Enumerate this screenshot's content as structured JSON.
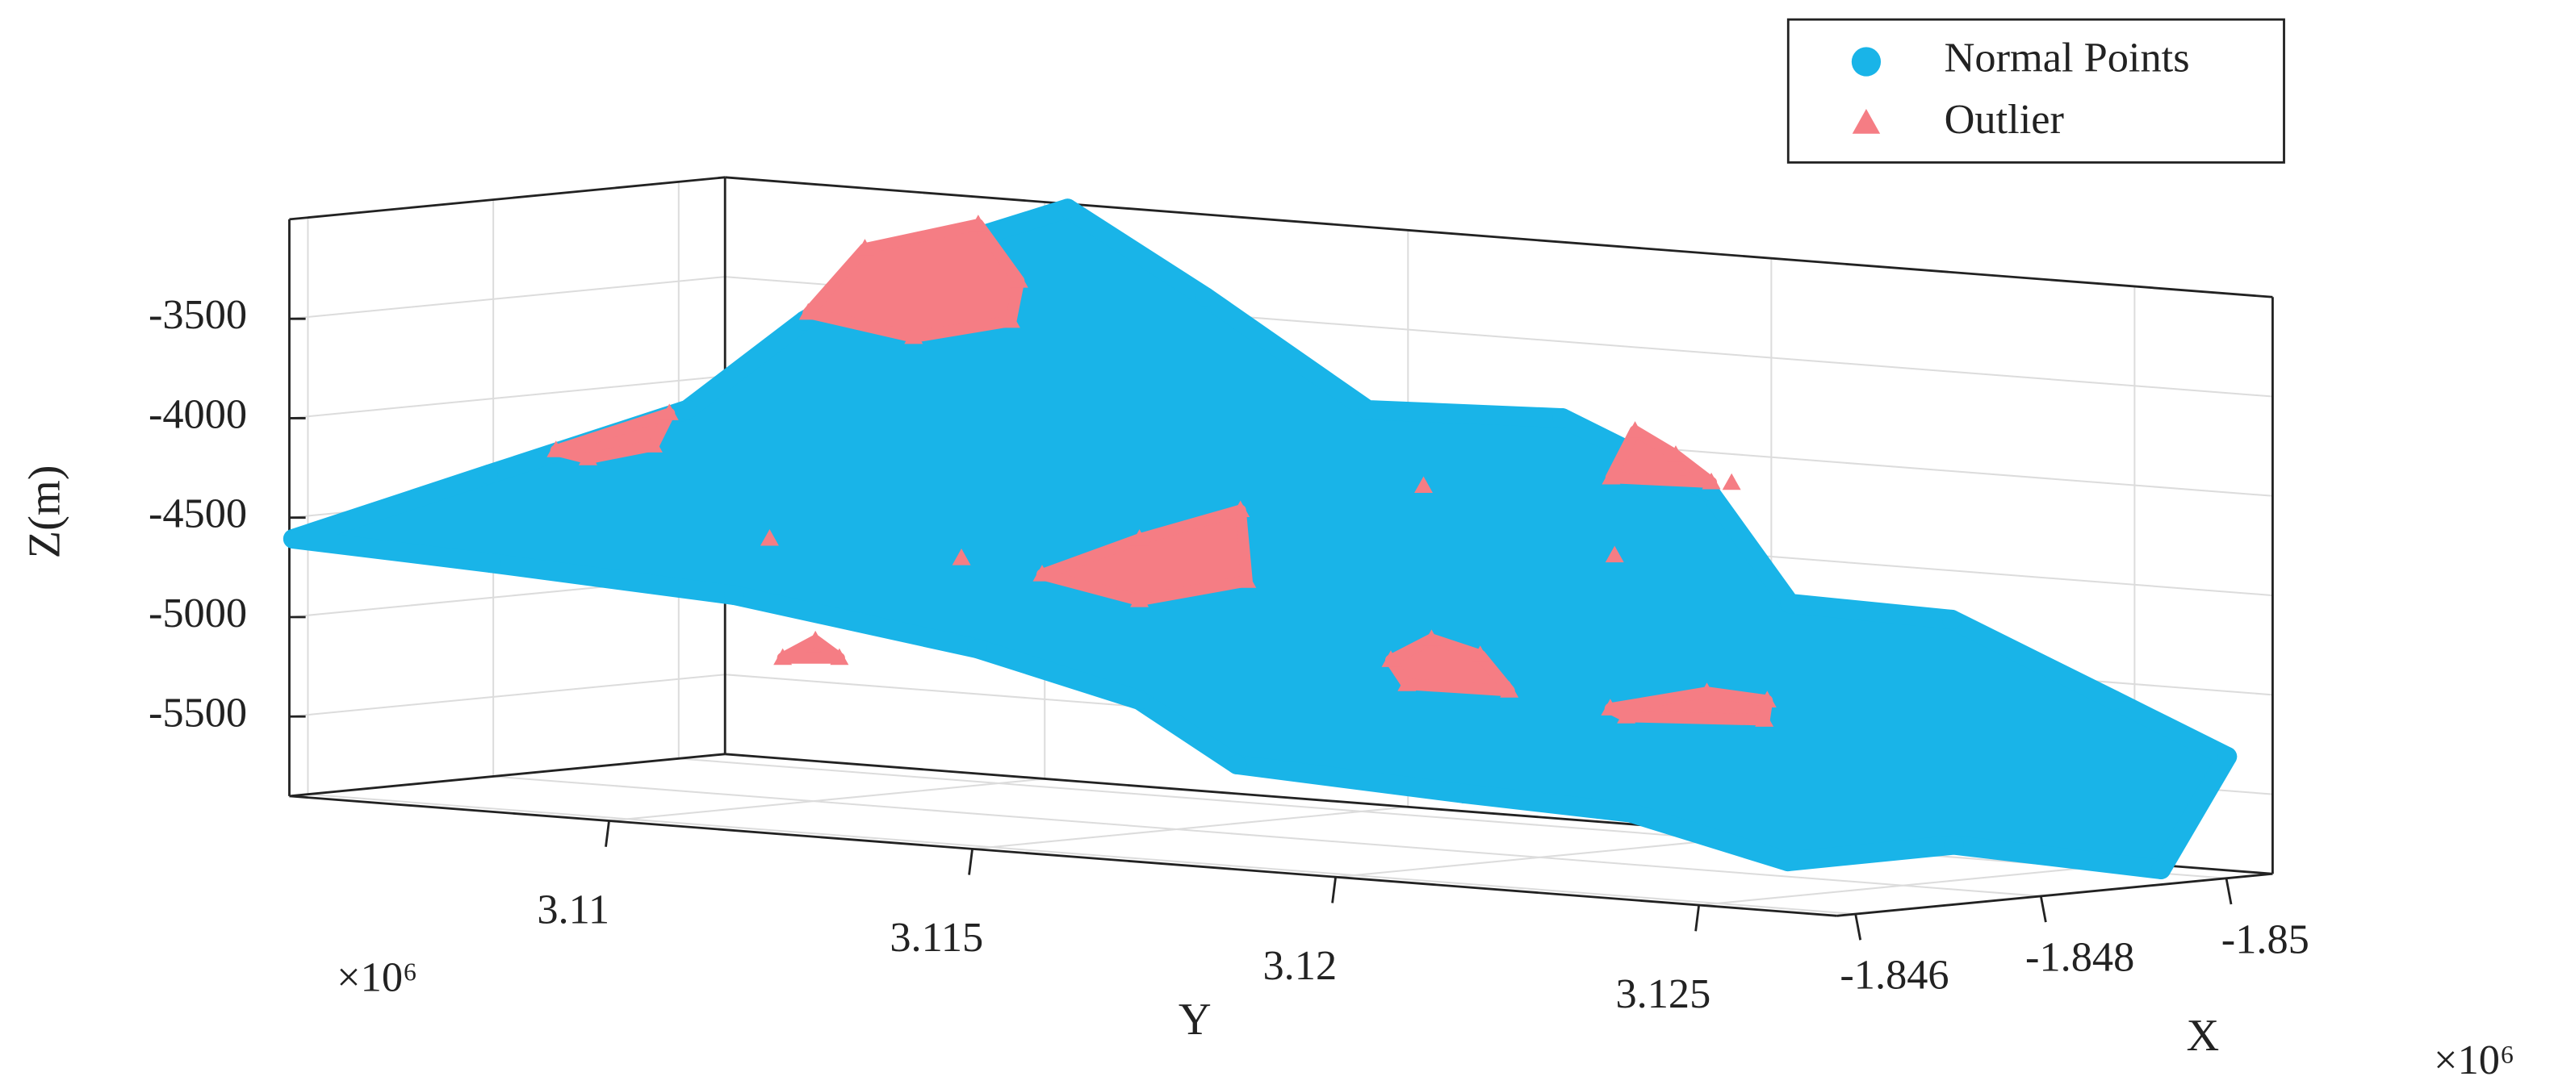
{
  "chart_data": {
    "type": "scatter3d",
    "zlabel": "Z(m)",
    "ylabel": "Y",
    "xlabel": "X",
    "y_exponent_label": "×10⁶",
    "x_exponent_label": "×10⁶",
    "ylim": [
      3.1056,
      3.1269
    ],
    "yticks": [
      3.11,
      3.115,
      3.12,
      3.125
    ],
    "xlim": [
      -1.8505,
      -1.8458
    ],
    "xticks": [
      -1.846,
      -1.848,
      -1.85
    ],
    "zlim": [
      -5900,
      -3000
    ],
    "zticks": [
      -5500,
      -5000,
      -4500,
      -4000,
      -3500
    ],
    "grid": true,
    "legend": "upper right",
    "series": [
      {
        "name": "Normal Points",
        "color": "#19b4e8",
        "marker": "circle",
        "y": [
          3.10565,
          3.10617,
          3.10674,
          3.10707,
          3.10845,
          3.11057,
          3.11247,
          3.1147,
          3.11738,
          3.11939,
          3.12051,
          3.12274,
          3.12497,
          3.12653,
          3.12613,
          3.12481,
          3.1238,
          3.12278,
          3.12177,
          3.11864,
          3.1173,
          3.11507,
          3.11172,
          3.10837
        ],
        "x": [
          -1.8458,
          -1.8475,
          -1.8492,
          -1.8502,
          -1.8503,
          -1.8503,
          -1.8503,
          -1.8503,
          -1.8503,
          -1.8503,
          -1.8503,
          -1.8503,
          -1.8503,
          -1.8503,
          -1.8499,
          -1.8487,
          -1.8477,
          -1.8468,
          -1.8458,
          -1.8458,
          -1.8458,
          -1.8458,
          -1.8458,
          -1.8458
        ],
        "z": [
          -4605,
          -4343,
          -4077,
          -3666,
          -3309,
          -3007,
          -3399,
          -3903,
          -3868,
          -4176,
          -4712,
          -4730,
          -5072,
          -5312,
          -5873,
          -5733,
          -5800,
          -5543,
          -5431,
          -5373,
          -5087,
          -4891,
          -4717,
          -4650
        ]
      },
      {
        "name": "Outlier",
        "color": "#f57d84",
        "marker": "triangle",
        "y": [
          3.107,
          3.10778,
          3.10934,
          3.1099,
          3.10979,
          3.10845,
          null,
          3.10927,
          3.11083,
          3.11061,
          3.10971,
          null,
          3.11596,
          3.1173,
          3.11869,
          3.11878,
          3.1173,
          null,
          3.12076,
          3.12132,
          3.12199,
          3.12239,
          3.12098,
          null,
          3.12378,
          3.12511,
          3.12594,
          3.1259,
          3.124,
          null,
          3.11805,
          3.11838,
          3.11894,
          3.11943,
          null,
          3.11239,
          3.11284,
          3.11317,
          null,
          3.11221,
          null,
          3.11485,
          null,
          3.12121,
          null,
          3.12384,
          null,
          3.12545
        ],
        "x": [
          -1.8503,
          -1.8503,
          -1.8503,
          -1.8503,
          -1.8503,
          -1.8503,
          null,
          -1.8458,
          -1.8458,
          -1.8458,
          -1.8458,
          null,
          -1.8458,
          -1.8458,
          -1.8458,
          -1.8458,
          -1.8458,
          null,
          -1.8458,
          -1.8458,
          -1.8458,
          -1.8458,
          -1.8458,
          null,
          -1.8458,
          -1.8458,
          -1.8458,
          -1.8458,
          -1.8458,
          null,
          -1.8503,
          -1.8503,
          -1.8503,
          -1.8503,
          null,
          -1.8458,
          -1.8458,
          -1.8458,
          null,
          -1.8458,
          null,
          -1.8458,
          null,
          -1.8458,
          null,
          -1.8458,
          null,
          -1.8458
        ],
        "z": [
          -3633,
          -3288,
          -3122,
          -3390,
          -3595,
          -3714,
          null,
          -4058,
          -3828,
          -3996,
          -4086,
          null,
          -4493,
          -4277,
          -4093,
          -4446,
          -4585,
          null,
          -4788,
          -4667,
          -4729,
          -4896,
          -4903,
          null,
          -4946,
          -4827,
          -4845,
          -4943,
          -4980,
          null,
          -4149,
          -3905,
          -4011,
          -4134,
          null,
          -5014,
          -4913,
          -4992,
          null,
          -4420,
          null,
          -4443,
          null,
          -3900,
          null,
          -4175,
          null,
          -3765
        ]
      }
    ]
  }
}
